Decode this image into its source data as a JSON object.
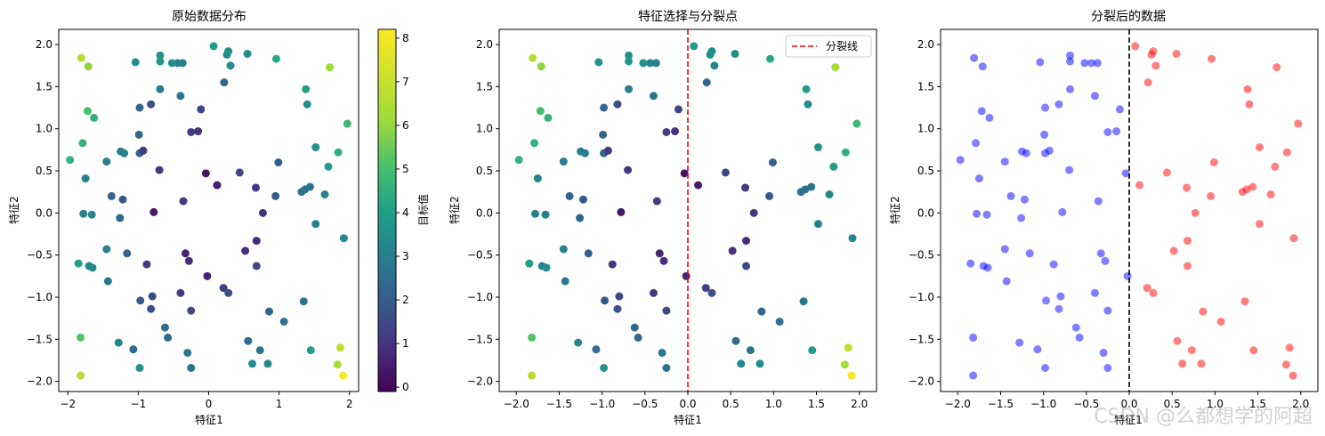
{
  "watermark": "CSDN @么都想学的阿超",
  "chart_data": [
    {
      "type": "scatter",
      "title": "原始数据分布",
      "xlabel": "特征1",
      "ylabel": "特征2",
      "xlim": [
        -2.13,
        2.13
      ],
      "ylim": [
        -2.12,
        2.18
      ],
      "xticks": [
        -2,
        -1,
        0,
        1,
        2
      ],
      "yticks": [
        -2.0,
        -1.5,
        -1.0,
        -0.5,
        0.0,
        0.5,
        1.0,
        1.5,
        2.0
      ],
      "xtick_labels": [
        "−2",
        "−1",
        "0",
        "1",
        "2"
      ],
      "ytick_labels": [
        "−2.0",
        "−1.5",
        "−1.0",
        "−0.5",
        "0.0",
        "0.5",
        "1.0",
        "1.5",
        "2.0"
      ],
      "colormap": "viridis",
      "colorbar": {
        "label": "目标值",
        "min": -0.1,
        "max": 8.2,
        "ticks": [
          0,
          1,
          2,
          3,
          4,
          5,
          6,
          7,
          8
        ],
        "tick_labels": [
          "0",
          "1",
          "2",
          "3",
          "4",
          "5",
          "6",
          "7",
          "8"
        ]
      },
      "grid": false,
      "color_by": "target"
    },
    {
      "type": "scatter",
      "title": "特征选择与分裂点",
      "xlabel": "特征1",
      "ylabel": "特征2",
      "xlim": [
        -2.2,
        2.2
      ],
      "ylim": [
        -2.12,
        2.18
      ],
      "xticks": [
        -2.0,
        -1.5,
        -1.0,
        -0.5,
        0.0,
        0.5,
        1.0,
        1.5,
        2.0
      ],
      "yticks": [
        -2.0,
        -1.5,
        -1.0,
        -0.5,
        0.0,
        0.5,
        1.0,
        1.5,
        2.0
      ],
      "xtick_labels": [
        "−2.0",
        "−1.5",
        "−1.0",
        "−0.5",
        "0.0",
        "0.5",
        "1.0",
        "1.5",
        "2.0"
      ],
      "ytick_labels": [
        "−2.0",
        "−1.5",
        "−1.0",
        "−0.5",
        "0.0",
        "0.5",
        "1.0",
        "1.5",
        "2.0"
      ],
      "colormap": "viridis",
      "split_line": {
        "x": 0.0,
        "color": "#ff0000",
        "style": "dashed",
        "label": "分裂线"
      },
      "legend": {
        "position": "top-right",
        "entries": [
          "分裂线"
        ]
      },
      "grid": false,
      "color_by": "target"
    },
    {
      "type": "scatter",
      "title": "分裂后的数据",
      "xlabel": "特征1",
      "ylabel": "特征2",
      "xlim": [
        -2.2,
        2.2
      ],
      "ylim": [
        -2.12,
        2.18
      ],
      "xticks": [
        -2.0,
        -1.5,
        -1.0,
        -0.5,
        0.0,
        0.5,
        1.0,
        1.5,
        2.0
      ],
      "yticks": [
        -2.0,
        -1.5,
        -1.0,
        -0.5,
        0.0,
        0.5,
        1.0,
        1.5,
        2.0
      ],
      "xtick_labels": [
        "−2.0",
        "−1.5",
        "−1.0",
        "−0.5",
        "0.0",
        "0.5",
        "1.0",
        "1.5",
        "2.0"
      ],
      "ytick_labels": [
        "−2.0",
        "−1.5",
        "−1.0",
        "−0.5",
        "0.0",
        "0.5",
        "1.0",
        "1.5",
        "2.0"
      ],
      "split_line": {
        "x": 0.0,
        "color": "#000000",
        "style": "dashed"
      },
      "left_color": "#0000ff",
      "right_color": "#ff0000",
      "grid": false,
      "color_by": "side"
    }
  ],
  "points": [
    {
      "x": 0.07,
      "y": 1.98,
      "t": 3.9
    },
    {
      "x": 0.26,
      "y": 1.88,
      "t": 3.5
    },
    {
      "x": 0.28,
      "y": 1.92,
      "t": 3.6
    },
    {
      "x": 0.55,
      "y": 1.89,
      "t": 3.4
    },
    {
      "x": 0.96,
      "y": 1.83,
      "t": 4.3
    },
    {
      "x": 0.31,
      "y": 1.75,
      "t": 3.3
    },
    {
      "x": 0.22,
      "y": 1.55,
      "t": 2.3
    },
    {
      "x": 1.38,
      "y": 1.47,
      "t": 4.0
    },
    {
      "x": 1.4,
      "y": 1.29,
      "t": 3.4
    },
    {
      "x": 1.72,
      "y": 1.73,
      "t": 6.2
    },
    {
      "x": 1.97,
      "y": 1.06,
      "t": 4.8
    },
    {
      "x": 1.84,
      "y": 0.72,
      "t": 4.5
    },
    {
      "x": 1.52,
      "y": 0.78,
      "t": 3.6
    },
    {
      "x": 1.7,
      "y": 0.55,
      "t": 3.9
    },
    {
      "x": 0.99,
      "y": 0.6,
      "t": 2.1
    },
    {
      "x": 0.44,
      "y": 0.48,
      "t": 1.4
    },
    {
      "x": 0.12,
      "y": 0.33,
      "t": 0.5
    },
    {
      "x": 0.67,
      "y": 0.3,
      "t": 1.1
    },
    {
      "x": 0.95,
      "y": 0.2,
      "t": 1.9
    },
    {
      "x": 1.32,
      "y": 0.25,
      "t": 2.6
    },
    {
      "x": 1.37,
      "y": 0.28,
      "t": 2.6
    },
    {
      "x": 1.44,
      "y": 0.31,
      "t": 2.7
    },
    {
      "x": 1.65,
      "y": 0.22,
      "t": 3.2
    },
    {
      "x": 0.77,
      "y": 0.0,
      "t": 1.0
    },
    {
      "x": 1.52,
      "y": -0.13,
      "t": 3.0
    },
    {
      "x": 1.92,
      "y": -0.3,
      "t": 3.2
    },
    {
      "x": 0.68,
      "y": -0.33,
      "t": 0.8
    },
    {
      "x": 0.52,
      "y": -0.45,
      "t": 0.9
    },
    {
      "x": 0.68,
      "y": -0.63,
      "t": 1.5
    },
    {
      "x": 0.21,
      "y": -0.89,
      "t": 1.3
    },
    {
      "x": 0.28,
      "y": -0.95,
      "t": 1.6
    },
    {
      "x": 0.86,
      "y": -1.17,
      "t": 2.3
    },
    {
      "x": 1.07,
      "y": -1.29,
      "t": 2.6
    },
    {
      "x": 1.35,
      "y": -1.05,
      "t": 2.7
    },
    {
      "x": 0.56,
      "y": -1.52,
      "t": 2.4
    },
    {
      "x": 0.73,
      "y": -1.63,
      "t": 2.7
    },
    {
      "x": 0.62,
      "y": -1.79,
      "t": 3.4
    },
    {
      "x": 0.84,
      "y": -1.79,
      "t": 3.3
    },
    {
      "x": 1.45,
      "y": -1.63,
      "t": 4.0
    },
    {
      "x": 1.87,
      "y": -1.6,
      "t": 6.8
    },
    {
      "x": 1.83,
      "y": -1.8,
      "t": 6.3
    },
    {
      "x": 1.91,
      "y": -1.93,
      "t": 8.1
    },
    {
      "x": -0.04,
      "y": 0.47,
      "t": 0.3
    },
    {
      "x": -0.02,
      "y": -0.75,
      "t": 0.6
    },
    {
      "x": -0.11,
      "y": 1.23,
      "t": 1.4
    },
    {
      "x": -0.15,
      "y": 0.97,
      "t": 1.0
    },
    {
      "x": -0.25,
      "y": 0.96,
      "t": 1.2
    },
    {
      "x": -0.36,
      "y": 0.14,
      "t": 1.2
    },
    {
      "x": -0.33,
      "y": -0.48,
      "t": 0.7
    },
    {
      "x": -0.28,
      "y": -0.57,
      "t": 0.9
    },
    {
      "x": -0.4,
      "y": -0.95,
      "t": 1.2
    },
    {
      "x": -0.25,
      "y": -1.16,
      "t": 1.5
    },
    {
      "x": -0.3,
      "y": -1.66,
      "t": 2.8
    },
    {
      "x": -0.25,
      "y": -1.84,
      "t": 2.6
    },
    {
      "x": -0.4,
      "y": 1.39,
      "t": 2.7
    },
    {
      "x": -0.44,
      "y": 1.78,
      "t": 3.1
    },
    {
      "x": -0.37,
      "y": 1.78,
      "t": 3.0
    },
    {
      "x": -0.52,
      "y": 1.78,
      "t": 3.5
    },
    {
      "x": -0.69,
      "y": 1.87,
      "t": 3.6
    },
    {
      "x": -0.69,
      "y": 1.8,
      "t": 3.7
    },
    {
      "x": -1.04,
      "y": 1.79,
      "t": 3.5
    },
    {
      "x": -0.69,
      "y": 1.47,
      "t": 3.0
    },
    {
      "x": -0.82,
      "y": 1.29,
      "t": 1.6
    },
    {
      "x": -0.98,
      "y": 1.25,
      "t": 2.4
    },
    {
      "x": -0.99,
      "y": 0.93,
      "t": 2.3
    },
    {
      "x": -0.98,
      "y": 0.71,
      "t": 2.3
    },
    {
      "x": -0.93,
      "y": 0.74,
      "t": 1.1
    },
    {
      "x": -0.7,
      "y": 0.51,
      "t": 1.1
    },
    {
      "x": -0.78,
      "y": 0.01,
      "t": 0.4
    },
    {
      "x": -0.88,
      "y": -0.61,
      "t": 1.1
    },
    {
      "x": -0.8,
      "y": -0.99,
      "t": 1.5
    },
    {
      "x": -0.97,
      "y": -1.04,
      "t": 1.9
    },
    {
      "x": -0.82,
      "y": -1.14,
      "t": 1.7
    },
    {
      "x": -0.62,
      "y": -1.36,
      "t": 2.4
    },
    {
      "x": -0.58,
      "y": -1.48,
      "t": 2.4
    },
    {
      "x": -1.07,
      "y": -1.62,
      "t": 2.4
    },
    {
      "x": -0.98,
      "y": -1.84,
      "t": 3.6
    },
    {
      "x": -1.28,
      "y": -1.54,
      "t": 3.2
    },
    {
      "x": -1.43,
      "y": -0.81,
      "t": 2.8
    },
    {
      "x": -1.45,
      "y": -0.43,
      "t": 3.1
    },
    {
      "x": -1.26,
      "y": -0.06,
      "t": 2.3
    },
    {
      "x": -1.38,
      "y": 0.2,
      "t": 2.2
    },
    {
      "x": -1.22,
      "y": 0.16,
      "t": 1.9
    },
    {
      "x": -1.16,
      "y": -0.48,
      "t": 2.2
    },
    {
      "x": -1.45,
      "y": 0.61,
      "t": 3.0
    },
    {
      "x": -1.25,
      "y": 0.73,
      "t": 3.0
    },
    {
      "x": -1.2,
      "y": 0.71,
      "t": 3.0
    },
    {
      "x": -1.63,
      "y": 1.13,
      "t": 4.6
    },
    {
      "x": -1.72,
      "y": 1.21,
      "t": 5.0
    },
    {
      "x": -1.79,
      "y": 0.83,
      "t": 4.6
    },
    {
      "x": -1.97,
      "y": 0.63,
      "t": 4.6
    },
    {
      "x": -1.75,
      "y": 0.41,
      "t": 3.1
    },
    {
      "x": -1.78,
      "y": -0.01,
      "t": 3.1
    },
    {
      "x": -1.66,
      "y": -0.02,
      "t": 3.1
    },
    {
      "x": -1.7,
      "y": -0.63,
      "t": 3.3
    },
    {
      "x": -1.65,
      "y": -0.65,
      "t": 3.4
    },
    {
      "x": -1.85,
      "y": -0.6,
      "t": 3.9
    },
    {
      "x": -1.82,
      "y": -1.48,
      "t": 5.2
    },
    {
      "x": -1.81,
      "y": 1.84,
      "t": 6.6
    },
    {
      "x": -1.71,
      "y": 1.74,
      "t": 5.9
    },
    {
      "x": -1.82,
      "y": -1.93,
      "t": 6.6
    }
  ]
}
